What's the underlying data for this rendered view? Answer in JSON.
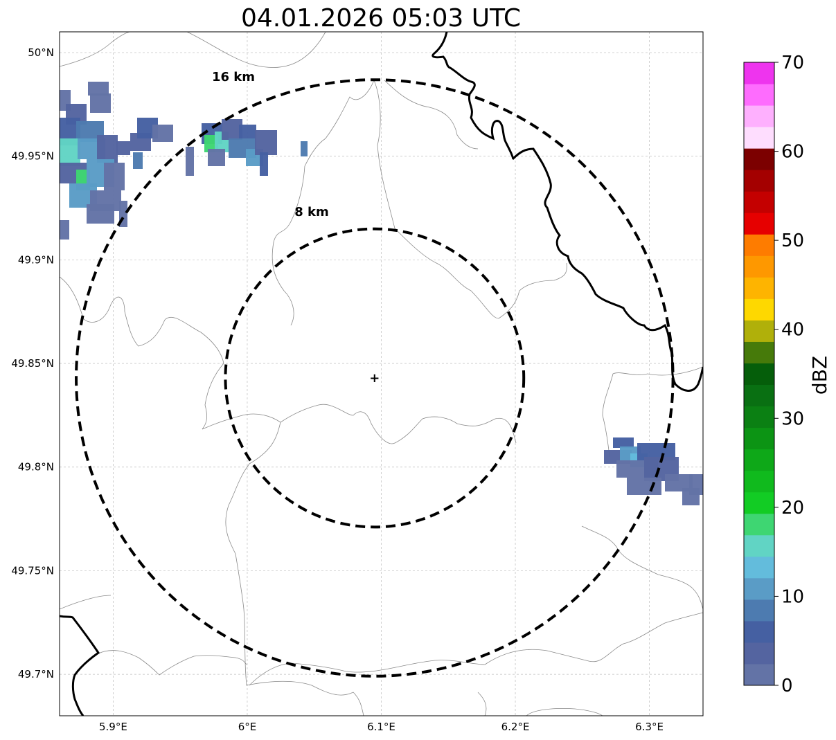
{
  "title": "04.01.2026 05:03 UTC",
  "map": {
    "lon_ticks": [
      {
        "value": 5.9,
        "label": "5.9°E"
      },
      {
        "value": 6.0,
        "label": "6°E"
      },
      {
        "value": 6.1,
        "label": "6.1°E"
      },
      {
        "value": 6.2,
        "label": "6.2°E"
      },
      {
        "value": 6.3,
        "label": "6.3°E"
      }
    ],
    "lat_ticks": [
      {
        "value": 50.0,
        "label": "50°N"
      },
      {
        "value": 49.95,
        "label": "49.95°N"
      },
      {
        "value": 49.9,
        "label": "49.9°N"
      },
      {
        "value": 49.85,
        "label": "49.85°N"
      },
      {
        "value": 49.8,
        "label": "49.8°N"
      },
      {
        "value": 49.75,
        "label": "49.75°N"
      },
      {
        "value": 49.7,
        "label": "49.7°N"
      }
    ],
    "lon_range": [
      5.86,
      6.34
    ],
    "lat_range": [
      49.68,
      50.01
    ],
    "gridlines": true,
    "radar_site": {
      "lon": 6.095,
      "lat": 49.843,
      "symbol": "+"
    },
    "range_rings": [
      {
        "radius_km": 8,
        "label": "8 km"
      },
      {
        "radius_km": 16,
        "label": "16 km"
      }
    ]
  },
  "colorbar": {
    "label": "dBZ",
    "ticks": [
      "0",
      "10",
      "20",
      "30",
      "40",
      "50",
      "60",
      "70"
    ],
    "min": 0,
    "max": 70,
    "step": 2.5,
    "colors": [
      "#6373a6",
      "#5464a0",
      "#4560a2",
      "#4d7bb0",
      "#5a9cc6",
      "#63bcdc",
      "#61d4c4",
      "#3ed672",
      "#12cc24",
      "#10ba1d",
      "#0ea818",
      "#0c9414",
      "#0b8013",
      "#097012",
      "#055e0a",
      "#467a0a",
      "#b0b00a",
      "#fed800",
      "#feb400",
      "#fe9800",
      "#fe7c00",
      "#e60000",
      "#c40000",
      "#a40000",
      "#7c0000",
      "#feddfe",
      "#feb0fe",
      "#fe6cfe",
      "#ee34ee"
    ]
  },
  "chart_data": {
    "type": "heatmap",
    "title": "04.01.2026 05:03 UTC",
    "units": "dBZ",
    "lon_range": [
      5.86,
      6.34
    ],
    "lat_range": [
      49.68,
      50.01
    ],
    "echoes": [
      {
        "region": "northwest",
        "lon_range": [
          5.86,
          5.96
        ],
        "lat_range": [
          49.91,
          49.99
        ],
        "max_dbz": 20
      },
      {
        "region": "north",
        "lon_range": [
          5.97,
          6.02
        ],
        "lat_range": [
          49.94,
          49.97
        ],
        "max_dbz": 20
      },
      {
        "region": "east",
        "lon_range": [
          6.27,
          6.34
        ],
        "lat_range": [
          49.78,
          49.81
        ],
        "max_dbz": 15
      }
    ]
  }
}
